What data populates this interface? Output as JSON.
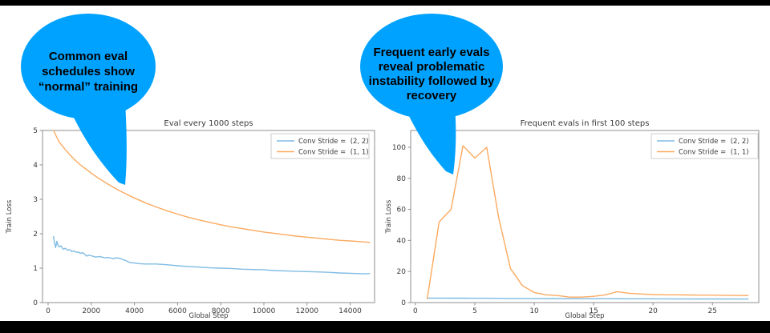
{
  "slide": {
    "background": "#ffffff",
    "bar_color": "#000000"
  },
  "callouts": {
    "left": {
      "text": "Common eval\nschedules show\n“normal” training",
      "fill": "#00a2ff",
      "text_color": "#000000"
    },
    "right": {
      "text": "Frequent early evals\nreveal problematic\ninstability followed by\nrecovery",
      "fill": "#00a2ff",
      "text_color": "#000000"
    }
  },
  "style": {
    "spine_color": "#8f8f8f",
    "text_color": "#3b3b3b",
    "legend_border": "#cccccc",
    "legend_bg": "#ffffff"
  },
  "chart_data": [
    {
      "type": "line",
      "title": "Eval every 1000 steps",
      "xlabel": "Global Step",
      "ylabel": "Train Loss",
      "xlim": [
        -260,
        15130
      ],
      "ylim": [
        0,
        5
      ],
      "xticks": [
        0,
        2000,
        4000,
        6000,
        8000,
        10000,
        12000,
        14000
      ],
      "yticks": [
        0,
        1,
        2,
        3,
        4,
        5
      ],
      "grid": false,
      "legend_position": "upper right",
      "series": [
        {
          "name": "Conv Stride =  (2, 2)",
          "color": "#7fbce4",
          "x": [
            250,
            300,
            350,
            400,
            450,
            500,
            600,
            700,
            800,
            900,
            1000,
            1100,
            1200,
            1300,
            1400,
            1500,
            1600,
            1700,
            1800,
            1900,
            2000,
            2200,
            2400,
            2600,
            2800,
            3000,
            3200,
            3400,
            3500,
            3600,
            3800,
            4000,
            4250,
            4500,
            5000,
            5500,
            6000,
            6500,
            7000,
            7500,
            8000,
            8500,
            9000,
            9500,
            10000,
            10500,
            11000,
            11500,
            12000,
            12500,
            13000,
            13500,
            14000,
            14500,
            14900
          ],
          "y": [
            1.92,
            1.72,
            1.6,
            1.78,
            1.68,
            1.62,
            1.65,
            1.55,
            1.58,
            1.52,
            1.54,
            1.48,
            1.5,
            1.46,
            1.47,
            1.43,
            1.45,
            1.4,
            1.35,
            1.38,
            1.36,
            1.32,
            1.34,
            1.3,
            1.31,
            1.28,
            1.3,
            1.27,
            1.24,
            1.22,
            1.16,
            1.15,
            1.13,
            1.12,
            1.12,
            1.1,
            1.07,
            1.05,
            1.03,
            1.01,
            1.0,
            0.99,
            0.97,
            0.96,
            0.95,
            0.93,
            0.92,
            0.91,
            0.9,
            0.89,
            0.88,
            0.86,
            0.85,
            0.84,
            0.84
          ]
        },
        {
          "name": "Conv Stride =  (1, 1)",
          "color": "#fbaa60",
          "x": [
            250,
            500,
            750,
            1000,
            1250,
            1500,
            1750,
            2000,
            2250,
            2500,
            2750,
            3000,
            3250,
            3500,
            3750,
            4000,
            4250,
            4500,
            4750,
            5000,
            5500,
            6000,
            6500,
            7000,
            7500,
            8000,
            8500,
            9000,
            9500,
            10000,
            10500,
            11000,
            11500,
            12000,
            12500,
            13000,
            13500,
            14000,
            14500,
            14900
          ],
          "y": [
            5.0,
            4.68,
            4.48,
            4.3,
            4.14,
            4.0,
            3.88,
            3.76,
            3.65,
            3.55,
            3.45,
            3.36,
            3.27,
            3.19,
            3.11,
            3.04,
            2.97,
            2.9,
            2.84,
            2.78,
            2.67,
            2.57,
            2.48,
            2.4,
            2.33,
            2.26,
            2.2,
            2.15,
            2.1,
            2.05,
            2.01,
            1.97,
            1.93,
            1.9,
            1.87,
            1.84,
            1.81,
            1.79,
            1.77,
            1.75
          ]
        }
      ]
    },
    {
      "type": "line",
      "title": "Frequent evals in first 100 steps",
      "xlabel": "Global Step",
      "ylabel": "Train Loss",
      "xlim": [
        -0.4,
        28.9
      ],
      "ylim": [
        0,
        110.8
      ],
      "xticks": [
        0,
        5,
        10,
        15,
        20,
        25
      ],
      "yticks": [
        0,
        20,
        40,
        60,
        80,
        100
      ],
      "grid": false,
      "legend_position": "upper right",
      "series": [
        {
          "name": "Conv Stride =  (2, 2)",
          "color": "#7fbce4",
          "x": [
            1,
            2,
            3,
            4,
            5,
            6,
            7,
            8,
            9,
            10,
            12,
            14,
            16,
            18,
            20,
            22,
            24,
            26,
            28
          ],
          "y": [
            2.9,
            2.9,
            2.85,
            2.85,
            2.8,
            2.8,
            2.75,
            2.7,
            2.7,
            2.65,
            2.6,
            2.55,
            2.5,
            2.45,
            2.4,
            2.35,
            2.3,
            2.3,
            2.25
          ]
        },
        {
          "name": "Conv Stride =  (1, 1)",
          "color": "#fbaa60",
          "x": [
            1,
            2,
            3,
            4,
            5,
            6,
            7,
            8,
            9,
            10,
            11,
            12,
            13,
            14,
            15,
            16,
            17,
            18,
            19,
            20,
            21,
            22,
            23,
            24,
            25,
            26,
            27,
            28
          ],
          "y": [
            2.5,
            52,
            60,
            101,
            93,
            100,
            55,
            22,
            11,
            6.5,
            5,
            4.5,
            3.5,
            3.5,
            4,
            5,
            7,
            6,
            5.5,
            5.2,
            5,
            5,
            4.9,
            4.8,
            4.8,
            4.7,
            4.6,
            4.5
          ]
        }
      ]
    }
  ]
}
